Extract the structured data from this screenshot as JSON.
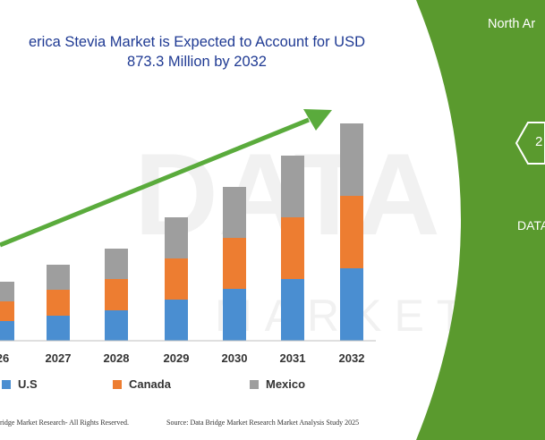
{
  "chart_data": {
    "type": "bar",
    "stacked": true,
    "title_line1": "erica Stevia Market is Expected to Account for USD",
    "title_line2": "873.3 Million by 2032",
    "categories": [
      "26",
      "2027",
      "2028",
      "2029",
      "2030",
      "2031",
      "2032"
    ],
    "series": [
      {
        "name": "U.S",
        "color": "#4a8ed1",
        "values": [
          22,
          28,
          34,
          46,
          58,
          69,
          81
        ]
      },
      {
        "name": "Canada",
        "color": "#ed7d31",
        "values": [
          22,
          29,
          35,
          46,
          57,
          69,
          81
        ]
      },
      {
        "name": "Mexico",
        "color": "#9e9e9e",
        "values": [
          22,
          28,
          34,
          46,
          57,
          69,
          81
        ]
      }
    ],
    "ylim": [
      0,
      243
    ],
    "grid": false,
    "legend_position": "bottom",
    "trend_arrow": true
  },
  "panel": {
    "color": "#5a9a2e",
    "title": "North Ar",
    "badge_value": "2",
    "caption": "DATA"
  },
  "footer": {
    "left": "ridge Market Research- All Rights Reserved.",
    "right": "Source: Data Bridge Market Research Market Analysis Study 2025"
  }
}
